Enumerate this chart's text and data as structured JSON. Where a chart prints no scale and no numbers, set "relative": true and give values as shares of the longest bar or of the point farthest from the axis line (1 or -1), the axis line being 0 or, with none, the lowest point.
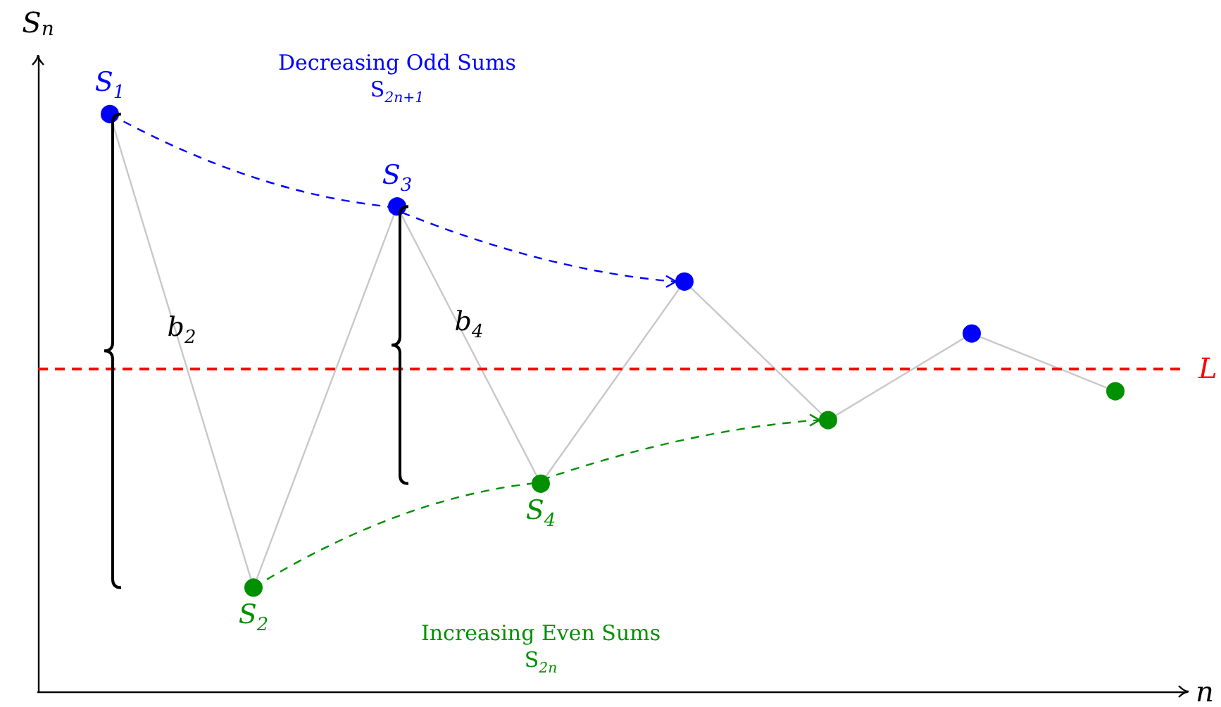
{
  "chart_data": {
    "type": "line",
    "relative": true,
    "xlabel": "n",
    "ylabel": "S$_{n}$",
    "categories": [
      null,
      null,
      null,
      null,
      null,
      null,
      null,
      null
    ],
    "series": [
      {
        "color": "#c8c8c8",
        "marker": "circle",
        "line_style": "solid",
        "values": [
          1,
          0.18,
          0.84,
          0.36,
          0.71,
          0.47,
          0.62,
          0.52
        ],
        "colors": [
          "#0000ff",
          "#009000",
          "#0000ff",
          "#009000",
          "#0000ff",
          "#009000",
          "#0000ff",
          "#009000"
        ]
      }
    ],
    "ref_lines": [
      {
        "axis": "y",
        "value": 0.555,
        "label": "L",
        "color": "#ff0000",
        "line_style": "dashed"
      }
    ],
    "annotations": [
      "Decreasing Odd Sums\nS$_{2n+1}$",
      "Increasing Even Sums\nS$_{2n}$",
      {
        "text": "S$_{1}$",
        "y": 1
      },
      {
        "text": "S$_{2}$",
        "y": 0.18
      },
      {
        "text": "S$_{3}$",
        "y": 0.84
      },
      {
        "text": "S$_{4}$",
        "y": 0.36
      },
      "b$_{2}$",
      "b$_{4}$"
    ],
    "grid": false
  }
}
